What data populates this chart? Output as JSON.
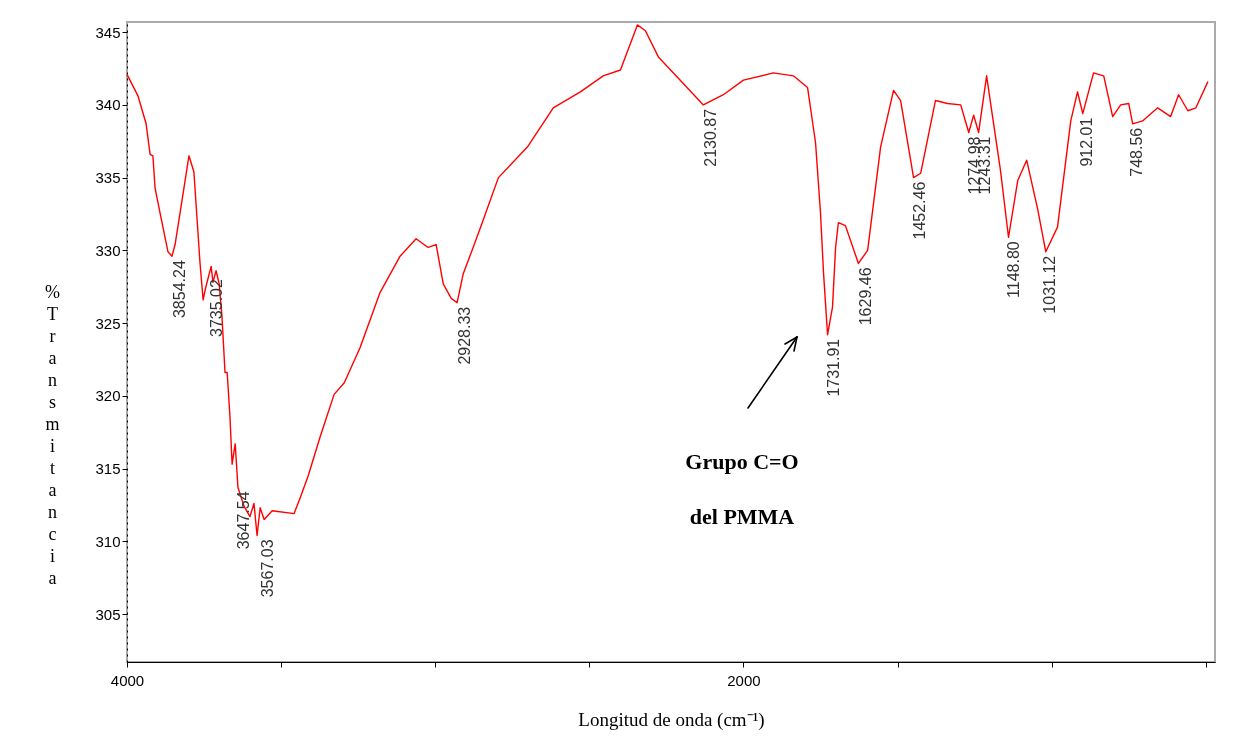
{
  "chart_data": {
    "type": "line",
    "xlabel": "Longitud de onda (cm⁻¹)",
    "ylabel": "% Transmitancia",
    "xlim": [
      4000,
      470
    ],
    "ylim": [
      301.7,
      345.7
    ],
    "xticks": [
      4000,
      {
        "value": 3500,
        "label": null
      },
      {
        "value": 3000,
        "label": null
      },
      {
        "value": 2500,
        "label": null
      },
      2000,
      {
        "value": 1500,
        "label": null
      },
      {
        "value": 1000,
        "label": null
      },
      {
        "value": 500,
        "label": null
      }
    ],
    "yticks": [
      305,
      310,
      315,
      320,
      325,
      330,
      335,
      340,
      345
    ],
    "grid": false,
    "marker": "none",
    "line_style": "solid",
    "series": [
      {
        "color": "#ff0000",
        "x": [
          4000,
          3964,
          3938,
          3925,
          3916,
          3909,
          3893,
          3867,
          3854,
          3844,
          3821,
          3799,
          3783,
          3763,
          3753,
          3744,
          3727,
          3721,
          3711,
          3701,
          3692,
          3682,
          3675,
          3666,
          3659,
          3649,
          3640,
          3620,
          3601,
          3588,
          3578,
          3568,
          3555,
          3529,
          3458,
          3438,
          3412,
          3373,
          3328,
          3295,
          3244,
          3179,
          3114,
          3062,
          3023,
          2997,
          2974,
          2948,
          2929,
          2909,
          2877,
          2844,
          2795,
          2701,
          2617,
          2529,
          2455,
          2399,
          2344,
          2318,
          2276,
          2205,
          2130,
          2065,
          2000,
          1903,
          1838,
          1792,
          1766,
          1750,
          1740,
          1727,
          1711,
          1701,
          1692,
          1669,
          1627,
          1597,
          1555,
          1513,
          1490,
          1448,
          1425,
          1377,
          1338,
          1295,
          1269,
          1253,
          1237,
          1211,
          1198,
          1166,
          1140,
          1110,
          1081,
          1045,
          1019,
          981,
          938,
          916,
          899,
          864,
          831,
          802,
          776,
          750,
          737,
          705,
          656,
          614,
          588,
          558,
          532,
          493
        ],
        "values": [
          342.1,
          340.6,
          338.7,
          336.6,
          336.5,
          334.3,
          332.6,
          329.9,
          329.6,
          330.4,
          333.5,
          336.5,
          335.4,
          329.1,
          326.6,
          327.5,
          328.9,
          327.8,
          328.6,
          327.7,
          325.5,
          321.6,
          321.6,
          318.6,
          315.3,
          316.7,
          313.7,
          312.4,
          311.7,
          312.6,
          310.4,
          312.3,
          311.5,
          312.1,
          311.9,
          313.0,
          314.5,
          317.2,
          320.1,
          320.9,
          323.3,
          327.1,
          329.6,
          330.8,
          330.2,
          330.4,
          327.7,
          326.7,
          326.4,
          328.4,
          330.2,
          332.1,
          335.0,
          337.1,
          339.8,
          340.9,
          342.0,
          342.4,
          345.5,
          345.1,
          343.3,
          341.7,
          340.0,
          340.7,
          341.7,
          342.2,
          342.0,
          341.2,
          337.4,
          332.6,
          328.4,
          324.2,
          326.1,
          330.2,
          331.9,
          331.7,
          329.1,
          330.0,
          337.1,
          341.0,
          340.3,
          335.0,
          335.3,
          340.3,
          340.1,
          340.0,
          338.1,
          339.3,
          338.1,
          342.0,
          340.1,
          335.5,
          330.9,
          334.8,
          336.2,
          332.8,
          329.9,
          331.6,
          338.9,
          340.9,
          339.4,
          342.2,
          342.0,
          339.2,
          340.0,
          340.1,
          338.7,
          338.9,
          339.8,
          339.2,
          340.7,
          339.6,
          339.8,
          341.6
        ]
      }
    ],
    "annotations": [
      {
        "text": "3854.24",
        "x": 3854,
        "y": 329.6
      },
      {
        "text": "3735.02",
        "x": 3735,
        "y": 328.3
      },
      {
        "text": "3647.54",
        "x": 3647,
        "y": 313.7
      },
      {
        "text": "3567.03",
        "x": 3567,
        "y": 310.4
      },
      {
        "text": "2928.33",
        "x": 2928,
        "y": 326.4
      },
      {
        "text": "2130.87",
        "x": 2131,
        "y": 340.0
      },
      {
        "text": "1731.91",
        "x": 1732,
        "y": 324.2
      },
      {
        "text": "1629.46",
        "x": 1629,
        "y": 329.1
      },
      {
        "text": "1452.46",
        "x": 1452,
        "y": 335.0
      },
      {
        "text": "1274.98",
        "x": 1275,
        "y": 338.1
      },
      {
        "text": "1243.31",
        "x": 1243,
        "y": 338.1
      },
      {
        "text": "1148.80",
        "x": 1149,
        "y": 330.9
      },
      {
        "text": "1031.12",
        "x": 1031,
        "y": 329.9
      },
      {
        "text": "912.01",
        "x": 912,
        "y": 339.4
      },
      {
        "text": "748.56",
        "x": 749,
        "y": 338.7
      },
      "Grupo C=O",
      "del PMMA"
    ]
  }
}
